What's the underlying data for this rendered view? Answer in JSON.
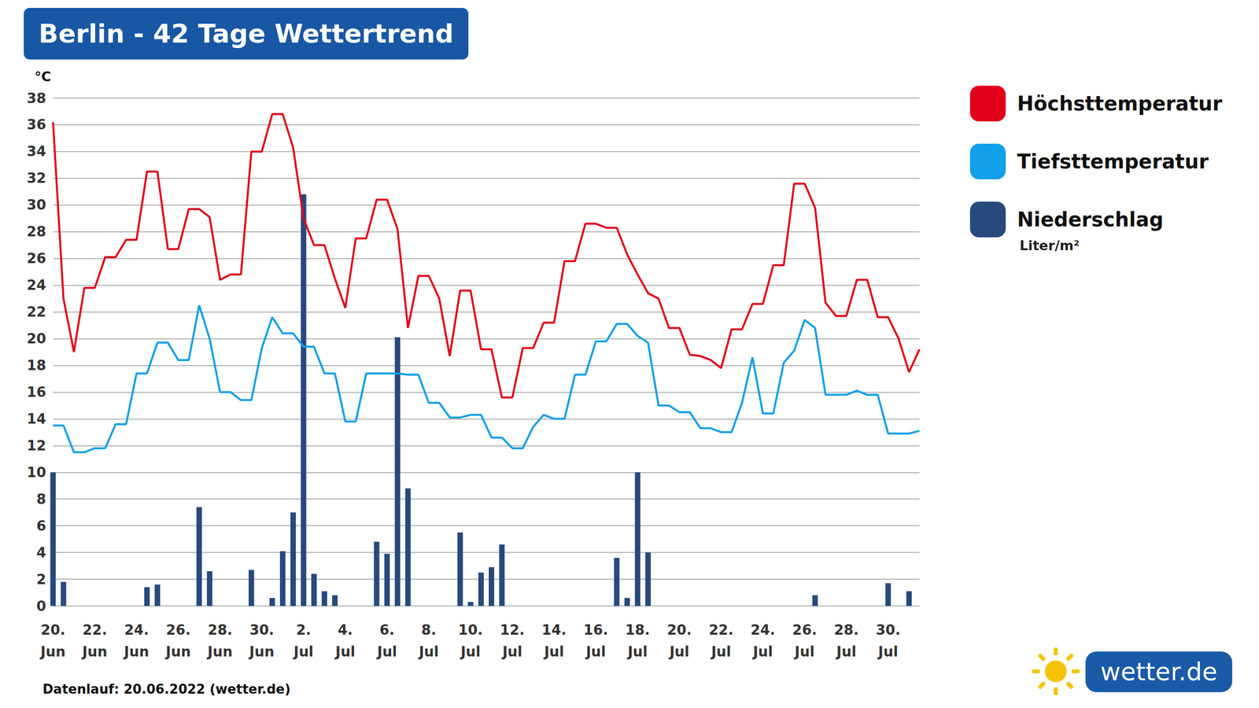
{
  "chart_data": {
    "type": "line",
    "title": "Berlin - 42 Tage Wettertrend",
    "ylabel": "°C",
    "categories": [
      "20.\nJun",
      null,
      null,
      null,
      "22.\nJun",
      null,
      null,
      null,
      "24.\nJun",
      null,
      null,
      null,
      "26.\nJun",
      null,
      null,
      null,
      "28.\nJun",
      null,
      null,
      null,
      "30.\nJun",
      null,
      null,
      null,
      "2.\nJul",
      null,
      null,
      null,
      "4.\nJul",
      null,
      null,
      null,
      "6.\nJul",
      null,
      null,
      null,
      "8.\nJul",
      null,
      null,
      null,
      "10.\nJul",
      null,
      null,
      null,
      "12.\nJul",
      null,
      null,
      null,
      "14.\nJul",
      null,
      null,
      null,
      "16.\nJul",
      null,
      null,
      null,
      "18.\nJul",
      null,
      null,
      null,
      "20.\nJul",
      null,
      null,
      null,
      "22.\nJul",
      null,
      null,
      null,
      "24.\nJul",
      null,
      null,
      null,
      "26.\nJul",
      null,
      null,
      null,
      "28.\nJul",
      null,
      null,
      null,
      "30.\nJul",
      null,
      null,
      null
    ],
    "series": [
      {
        "name": "Höchsttemperatur",
        "type": "line",
        "color": "#e2001a",
        "values": [
          36.2,
          23,
          19,
          23.8,
          23.8,
          26.1,
          26.1,
          27.4,
          27.4,
          32.5,
          32.5,
          26.7,
          26.7,
          29.7,
          29.7,
          29.1,
          24.4,
          24.8,
          24.8,
          34,
          34,
          36.8,
          36.8,
          34.3,
          29,
          27,
          27,
          24.5,
          22.3,
          27.5,
          27.5,
          30.4,
          30.4,
          28.2,
          20.8,
          24.7,
          24.7,
          23,
          18.7,
          23.6,
          23.6,
          19.2,
          19.2,
          15.6,
          15.6,
          19.3,
          19.3,
          21.2,
          21.2,
          25.8,
          25.8,
          28.6,
          28.6,
          28.3,
          28.3,
          26.3,
          24.8,
          23.4,
          23,
          20.8,
          20.8,
          18.8,
          18.7,
          18.4,
          17.8,
          20.7,
          20.7,
          22.6,
          22.6,
          25.5,
          25.5,
          31.6,
          31.6,
          29.8,
          22.7,
          21.7,
          21.7,
          24.4,
          24.4,
          21.6,
          21.6,
          20,
          17.5,
          19.2
        ]
      },
      {
        "name": "Tiefsttemperatur",
        "type": "line",
        "color": "#109fe8",
        "values": [
          13.5,
          13.5,
          11.5,
          11.5,
          11.8,
          11.8,
          13.6,
          13.6,
          17.4,
          17.4,
          19.7,
          19.7,
          18.4,
          18.4,
          22.5,
          20,
          16,
          16,
          15.4,
          15.4,
          19.3,
          21.6,
          20.4,
          20.4,
          19.4,
          19.4,
          17.4,
          17.4,
          13.8,
          13.8,
          17.4,
          17.4,
          17.4,
          17.4,
          17.3,
          17.3,
          15.2,
          15.2,
          14.1,
          14.1,
          14.3,
          14.3,
          12.6,
          12.6,
          11.8,
          11.8,
          13.4,
          14.3,
          14,
          14,
          17.3,
          17.3,
          19.8,
          19.8,
          21.1,
          21.1,
          20.2,
          19.7,
          15,
          15,
          14.5,
          14.5,
          13.3,
          13.3,
          13,
          13,
          15.2,
          18.6,
          14.4,
          14.4,
          18.2,
          19.1,
          21.4,
          20.8,
          15.8,
          15.8,
          15.8,
          16.1,
          15.8,
          15.8,
          12.9,
          12.9,
          12.9,
          13.1
        ]
      },
      {
        "name": "Niederschlag",
        "type": "bar",
        "color": "#27497e",
        "values": [
          10,
          1.8,
          0,
          0,
          0,
          0,
          0,
          0,
          0,
          1.4,
          1.6,
          0,
          0,
          0,
          7.4,
          2.6,
          0,
          0,
          0,
          2.7,
          0,
          0.6,
          4.1,
          7,
          30.8,
          2.4,
          1.1,
          0.8,
          0,
          0,
          0,
          4.8,
          3.9,
          20.1,
          8.8,
          0,
          0,
          0,
          0,
          5.5,
          0.3,
          2.5,
          2.9,
          4.6,
          0,
          0,
          0,
          0,
          0,
          0,
          0,
          0,
          0,
          0,
          3.6,
          0.6,
          10,
          4,
          0,
          0,
          0,
          0,
          0,
          0,
          0,
          0,
          0,
          0,
          0,
          0,
          0,
          0,
          0,
          0.8,
          0,
          0,
          0,
          0,
          0,
          0,
          1.7,
          0,
          1.1,
          0
        ]
      }
    ],
    "ylim": [
      0,
      38
    ],
    "yticks": [
      0,
      2,
      4,
      6,
      8,
      10,
      12,
      14,
      16,
      18,
      20,
      22,
      24,
      26,
      28,
      30,
      32,
      34,
      36,
      38
    ],
    "grid": true,
    "legend": "right",
    "legend_note": "Liter/m²",
    "source": "Datenlauf: 20.06.2022 (wetter.de)",
    "logo": "wetter.de"
  }
}
